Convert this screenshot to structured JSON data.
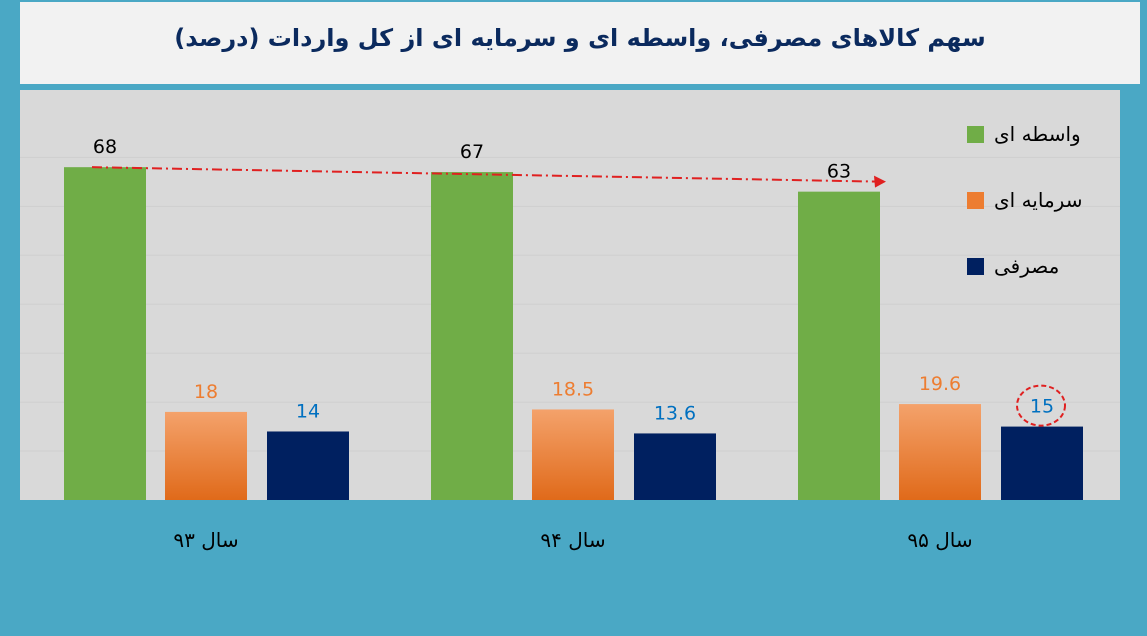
{
  "title": "سهم کالاهای مصرفی، واسطه ای و سرمایه ای  از کل واردات (درصد)",
  "colors": {
    "background": "#4aa8c5",
    "plot_bg": "#d9d9d9",
    "intermediate": "#70ad47",
    "capital": "#ed7d31",
    "consumer": "#002060",
    "intermediate_label": "#000000",
    "capital_label": "#ed7d31",
    "consumer_label": "#0070c0",
    "trend_line": "#e02020"
  },
  "legend": [
    {
      "name": "واسطه ای",
      "color_key": "intermediate"
    },
    {
      "name": "سرمایه ای",
      "color_key": "capital"
    },
    {
      "name": "مصرفی",
      "color_key": "consumer"
    }
  ],
  "chart_data": {
    "type": "bar",
    "title": "سهم کالاهای مصرفی، واسطه ای و سرمایه ای  از کل واردات (درصد)",
    "categories": [
      "سال ۹۳",
      "سال ۹۴",
      "سال ۹۵"
    ],
    "series": [
      {
        "name": "واسطه ای",
        "values": [
          68,
          67,
          63
        ]
      },
      {
        "name": "سرمایه ای",
        "values": [
          18,
          18.5,
          19.6
        ]
      },
      {
        "name": "مصرفی",
        "values": [
          14,
          13.6,
          15
        ]
      }
    ],
    "ylim": [
      0,
      80
    ],
    "legend_position": "right",
    "annotations": [
      {
        "type": "trend-arrow",
        "series": "واسطه ای",
        "style": "dash-dot"
      },
      {
        "type": "circle",
        "series": "مصرفی",
        "category": "سال ۹۵"
      }
    ]
  }
}
